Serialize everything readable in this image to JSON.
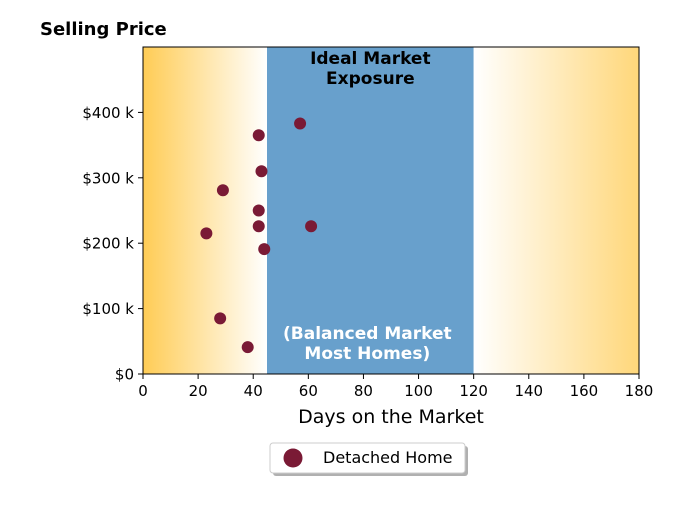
{
  "chart_data": {
    "type": "scatter",
    "title": "Selling Price",
    "xlabel": "Days on the Market",
    "ylabel": "",
    "xlim": [
      0,
      180
    ],
    "ylim": [
      0,
      500
    ],
    "xticks": [
      0,
      20,
      40,
      60,
      80,
      100,
      120,
      140,
      160,
      180
    ],
    "yticks": [
      0,
      100,
      200,
      300,
      400
    ],
    "ytick_labels": [
      "$0",
      "$100 k",
      "$200 k",
      "$300 k",
      "$400 k"
    ],
    "grid": false,
    "legend_placement": "bottom-center",
    "background_zones": [
      {
        "x_range": [
          0,
          45
        ],
        "style": "gradient",
        "color_from": "#ffcc55",
        "color_to": "#ffffff"
      },
      {
        "x_range": [
          45,
          120
        ],
        "style": "solid",
        "color": "#68a0cc"
      },
      {
        "x_range": [
          120,
          180
        ],
        "style": "gradient",
        "color_from": "#ffffff",
        "color_to": "#ffd77a"
      }
    ],
    "annotations": [
      {
        "text_lines": [
          "Ideal Market",
          "Exposure"
        ],
        "color": "#000000",
        "position": "top"
      },
      {
        "text_lines": [
          "(Balanced Market",
          "Most Homes)"
        ],
        "color": "#ffffff",
        "position": "bottom"
      }
    ],
    "series": [
      {
        "name": "Detached Home",
        "color": "#7a1a35",
        "marker": "circle",
        "points": [
          {
            "x": 57,
            "y": 383
          },
          {
            "x": 42,
            "y": 365
          },
          {
            "x": 43,
            "y": 310
          },
          {
            "x": 29,
            "y": 281
          },
          {
            "x": 42,
            "y": 250
          },
          {
            "x": 42,
            "y": 226
          },
          {
            "x": 61,
            "y": 226
          },
          {
            "x": 23,
            "y": 215
          },
          {
            "x": 44,
            "y": 191
          },
          {
            "x": 28,
            "y": 85
          },
          {
            "x": 38,
            "y": 41
          }
        ]
      }
    ]
  }
}
